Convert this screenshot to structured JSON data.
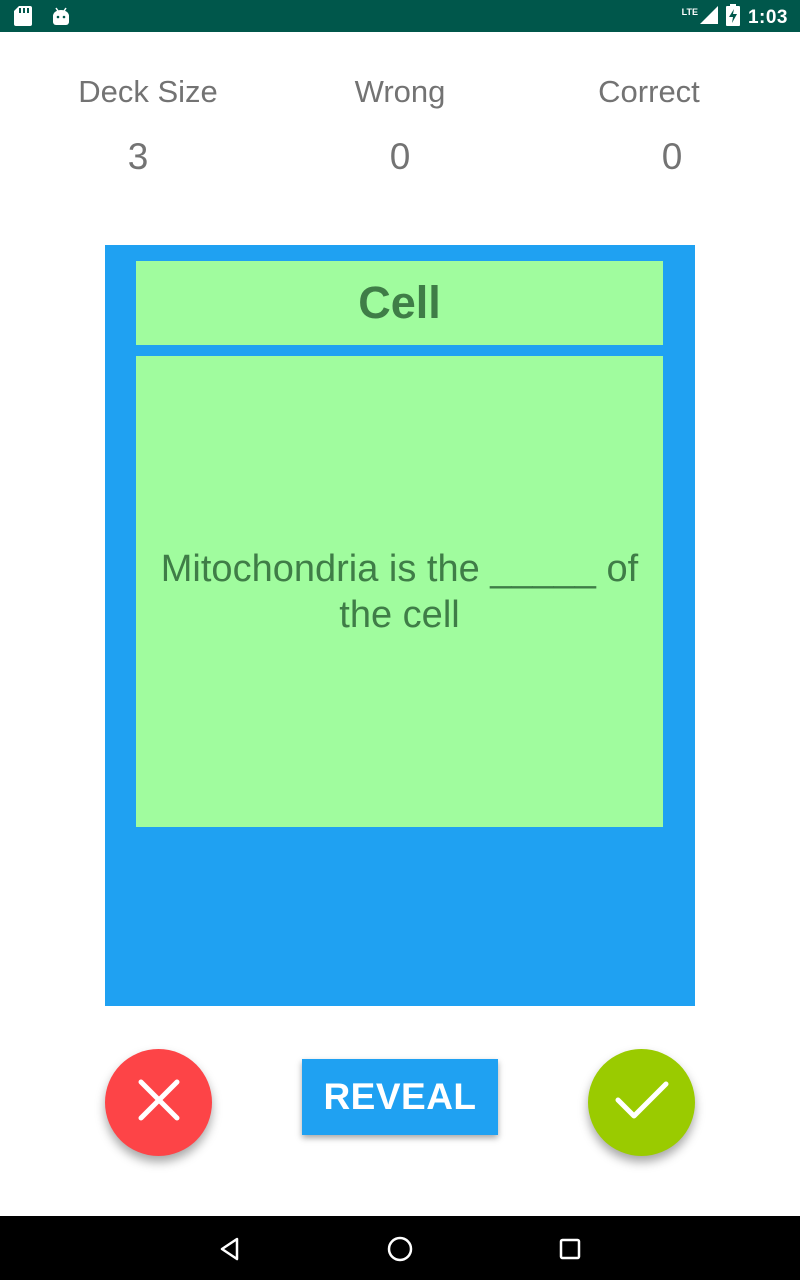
{
  "status_bar": {
    "time": "1:03",
    "network": "LTE",
    "icons": [
      "sd-card-icon",
      "android-icon",
      "signal-icon",
      "battery-charging-icon"
    ]
  },
  "stats": {
    "deck_size": {
      "label": "Deck Size",
      "value": "3"
    },
    "wrong": {
      "label": "Wrong",
      "value": "0"
    },
    "correct": {
      "label": "Correct",
      "value": "0"
    }
  },
  "card": {
    "title": "Cell",
    "body": "Mitochondria is the _____ of the cell"
  },
  "actions": {
    "wrong_icon": "close-icon",
    "reveal_label": "REVEAL",
    "correct_icon": "check-icon"
  },
  "nav": {
    "icons": [
      "back-icon",
      "home-icon",
      "recents-icon"
    ]
  },
  "colors": {
    "status_bar": "#00574b",
    "card_bg": "#1fa1f2",
    "card_panel": "#a0fc9e",
    "card_text": "#3f7d47",
    "wrong": "#fd4447",
    "correct": "#9acb00",
    "reveal": "#1fa1f2"
  }
}
